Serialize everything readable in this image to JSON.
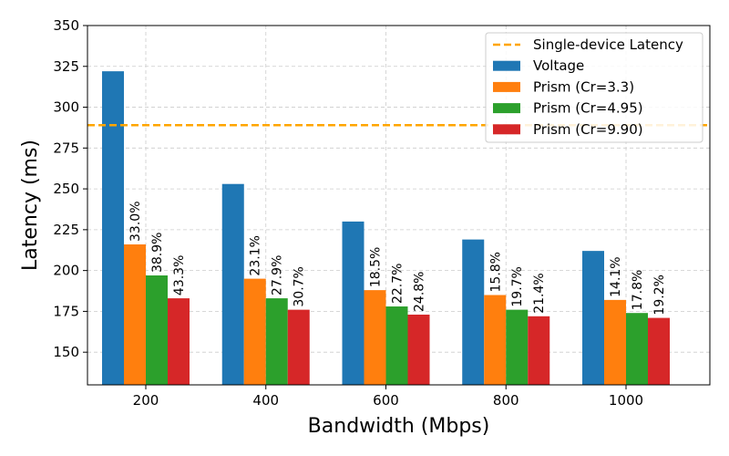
{
  "chart_data": {
    "type": "bar",
    "title": "",
    "xlabel": "Bandwidth (Mbps)",
    "ylabel": "Latency (ms)",
    "categories": [
      "200",
      "400",
      "600",
      "800",
      "1000"
    ],
    "ylim": [
      130,
      350
    ],
    "yticks": [
      150,
      175,
      200,
      225,
      250,
      275,
      300,
      325,
      350
    ],
    "grid": true,
    "legend_position": "top-right",
    "series": [
      {
        "name": "Voltage",
        "color": "#1f77b4",
        "values": [
          322,
          253,
          230,
          219,
          212
        ],
        "labels": [
          "",
          "",
          "",
          "",
          ""
        ]
      },
      {
        "name": "Prism (Cr=3.3)",
        "color": "#ff7f0e",
        "values": [
          216,
          195,
          188,
          185,
          182
        ],
        "labels": [
          "33.0%",
          "23.1%",
          "18.5%",
          "15.8%",
          "14.1%"
        ]
      },
      {
        "name": "Prism (Cr=4.95)",
        "color": "#2ca02c",
        "values": [
          197,
          183,
          178,
          176,
          174
        ],
        "labels": [
          "38.9%",
          "27.9%",
          "22.7%",
          "19.7%",
          "17.8%"
        ]
      },
      {
        "name": "Prism (Cr=9.90)",
        "color": "#d62728",
        "values": [
          183,
          176,
          173,
          172,
          171
        ],
        "labels": [
          "43.3%",
          "30.7%",
          "24.8%",
          "21.4%",
          "19.2%"
        ]
      }
    ],
    "reference_line": {
      "name": "Single-device Latency",
      "value": 289,
      "color": "#ffa500"
    }
  }
}
